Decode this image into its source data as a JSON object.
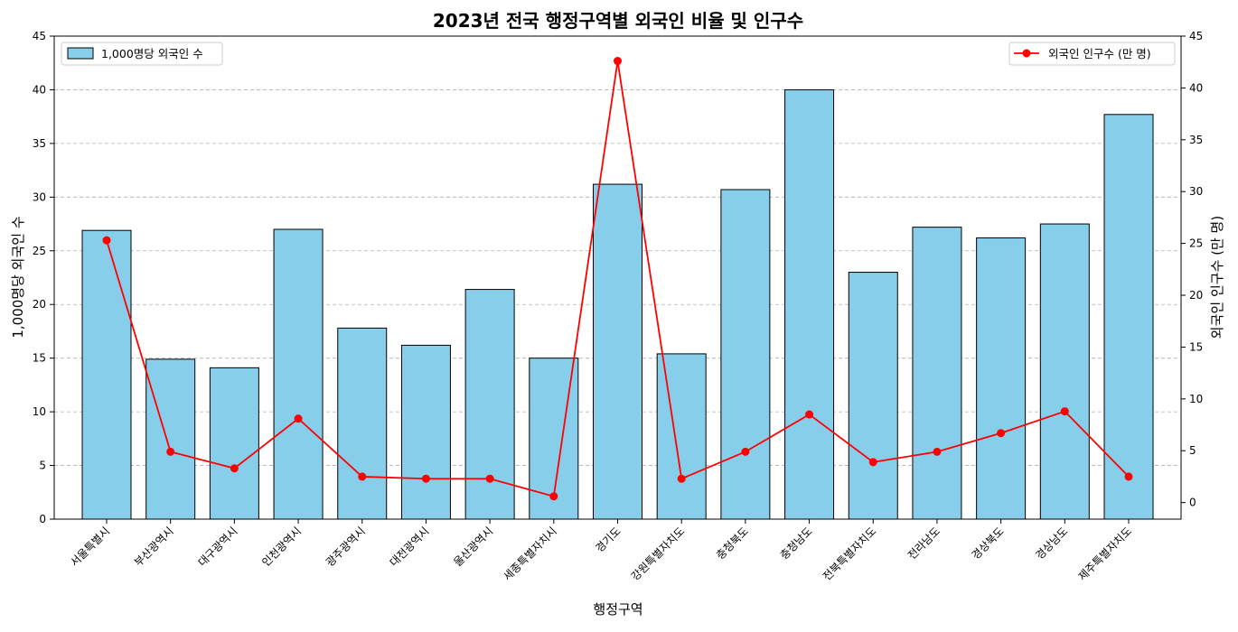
{
  "chart_data": {
    "type": "bar",
    "title": "2023년 전국 행정구역별 외국인 비율 및 인구수",
    "xlabel": "행정구역",
    "ylabel_left": "1,000명당 외국인 수",
    "ylabel_right": "외국인 인구수 (만 명)",
    "ylim_left": [
      0,
      45
    ],
    "ylim_right": [
      -1.6,
      45
    ],
    "yticks_left": [
      0,
      5,
      10,
      15,
      20,
      25,
      30,
      35,
      40,
      45
    ],
    "yticks_right": [
      0,
      5,
      10,
      15,
      20,
      25,
      30,
      35,
      40,
      45
    ],
    "grid": true,
    "categories": [
      "서울특별시",
      "부산광역시",
      "대구광역시",
      "인천광역시",
      "광주광역시",
      "대전광역시",
      "울산광역시",
      "세종특별자치시",
      "경기도",
      "강원특별자치도",
      "충청북도",
      "충청남도",
      "전북특별자치도",
      "전라남도",
      "경상북도",
      "경상남도",
      "제주특별자치도"
    ],
    "series": [
      {
        "name": "1,000명당 외국인 수",
        "type": "bar",
        "axis": "left",
        "color": "#87CEEB",
        "values": [
          26.9,
          14.9,
          14.1,
          27.0,
          17.8,
          16.2,
          21.4,
          15.0,
          31.2,
          15.4,
          30.7,
          40.0,
          23.0,
          27.2,
          26.2,
          27.5,
          37.7
        ]
      },
      {
        "name": "외국인 인구수 (만 명)",
        "type": "line",
        "axis": "right",
        "color": "#ff0000",
        "values": [
          25.3,
          4.9,
          3.3,
          8.1,
          2.5,
          2.3,
          2.3,
          0.6,
          42.6,
          2.3,
          4.9,
          8.5,
          3.9,
          4.9,
          6.7,
          8.8,
          2.5
        ]
      }
    ],
    "legend_left_placement": "top-left",
    "legend_right_placement": "top-right"
  }
}
